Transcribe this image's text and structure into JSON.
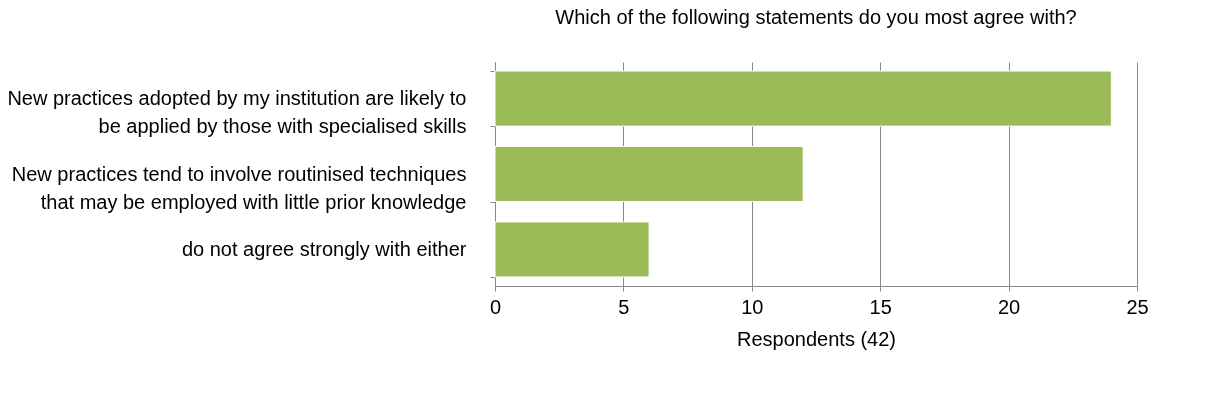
{
  "chart_data": {
    "type": "bar",
    "orientation": "horizontal",
    "title": "Which of the following statements do you most agree with?",
    "xlabel": "Respondents (42)",
    "categories": [
      "New practices adopted by my institution are likely to be applied by those with specialised skills",
      "New practices tend to involve routinised techniques that may be employed with little prior knowledge",
      "do not agree strongly with either"
    ],
    "values": [
      24,
      12,
      6
    ],
    "color": "#9bbb59",
    "xlim": [
      0,
      25
    ],
    "xticks": [
      0,
      5,
      10,
      15,
      20,
      25
    ],
    "grid": "x"
  }
}
